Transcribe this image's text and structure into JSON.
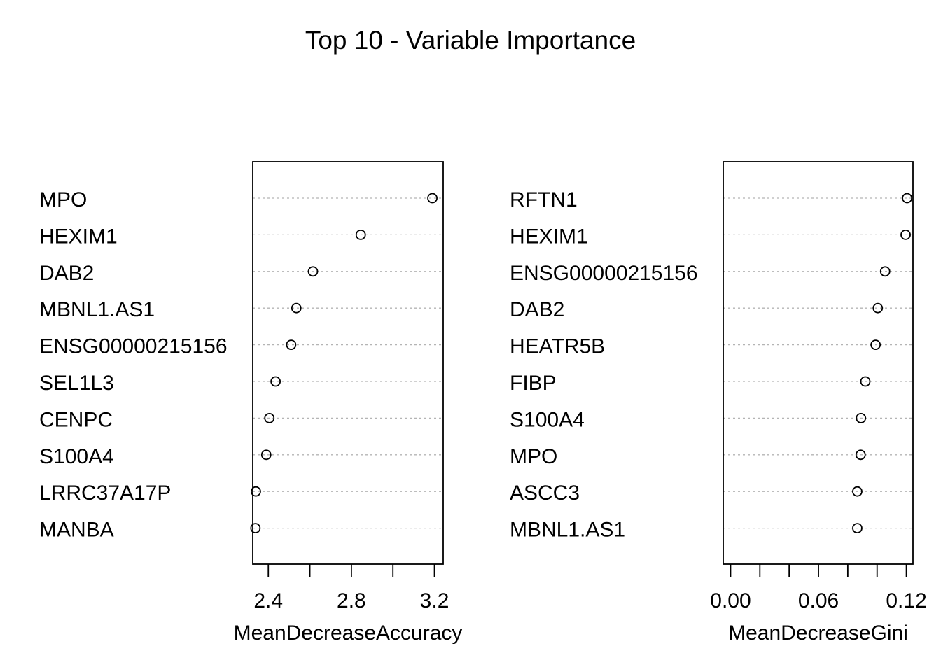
{
  "title": "Top 10 - Variable Importance",
  "chart_data": [
    {
      "type": "scatter",
      "style": "dotchart",
      "xlabel": "MeanDecreaseAccuracy",
      "xlim": [
        2.325,
        3.242
      ],
      "ticks": [
        2.4,
        2.6,
        2.8,
        3.0,
        3.2
      ],
      "tick_labels": [
        "2.4",
        "",
        "2.8",
        "",
        "3.2"
      ],
      "grid": "dotted horizontal guide lines",
      "categories": [
        "MPO",
        "HEXIM1",
        "DAB2",
        "MBNL1.AS1",
        "ENSG00000215156",
        "SEL1L3",
        "CENPC",
        "S100A4",
        "LRRC37A17P",
        "MANBA"
      ],
      "values": [
        3.19,
        2.845,
        2.615,
        2.535,
        2.51,
        2.435,
        2.405,
        2.39,
        2.34,
        2.338
      ]
    },
    {
      "type": "scatter",
      "style": "dotchart",
      "xlabel": "MeanDecreaseGini",
      "xlim": [
        -0.005,
        0.1245
      ],
      "ticks": [
        0.0,
        0.02,
        0.04,
        0.06,
        0.08,
        0.1,
        0.12
      ],
      "tick_labels": [
        "0.00",
        "",
        "",
        "0.06",
        "",
        "",
        "0.12"
      ],
      "grid": "dotted horizontal guide lines",
      "categories": [
        "RFTN1",
        "HEXIM1",
        "ENSG00000215156",
        "DAB2",
        "HEATR5B",
        "FIBP",
        "S100A4",
        "MPO",
        "ASCC3",
        "MBNL1.AS1"
      ],
      "values": [
        0.1205,
        0.1195,
        0.1055,
        0.1005,
        0.099,
        0.092,
        0.089,
        0.0888,
        0.0865,
        0.0865
      ]
    }
  ]
}
